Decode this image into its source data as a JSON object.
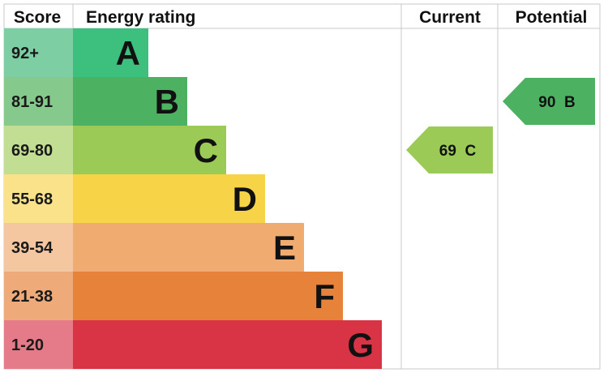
{
  "headers": {
    "score": "Score",
    "energy_rating": "Energy rating",
    "current": "Current",
    "potential": "Potential"
  },
  "chart_data": {
    "type": "bar",
    "bands": [
      {
        "letter": "A",
        "range": "92+",
        "color": "#3dbf7e",
        "score_bg": "#7dcfa3"
      },
      {
        "letter": "B",
        "range": "81-91",
        "color": "#4db162",
        "score_bg": "#86c98d"
      },
      {
        "letter": "C",
        "range": "69-80",
        "color": "#9cca57",
        "score_bg": "#c1de93"
      },
      {
        "letter": "D",
        "range": "55-68",
        "color": "#f7d348",
        "score_bg": "#fae28b"
      },
      {
        "letter": "E",
        "range": "39-54",
        "color": "#f0ab70",
        "score_bg": "#f5c7a0"
      },
      {
        "letter": "F",
        "range": "21-38",
        "color": "#e7823a",
        "score_bg": "#eeaa79"
      },
      {
        "letter": "G",
        "range": "1-20",
        "color": "#d93445",
        "score_bg": "#e57a89"
      }
    ],
    "current": {
      "value": 69,
      "band": "C",
      "label": "69  C",
      "color": "#9cca57"
    },
    "potential": {
      "value": 90,
      "band": "B",
      "label": "90  B",
      "color": "#4db162"
    }
  }
}
